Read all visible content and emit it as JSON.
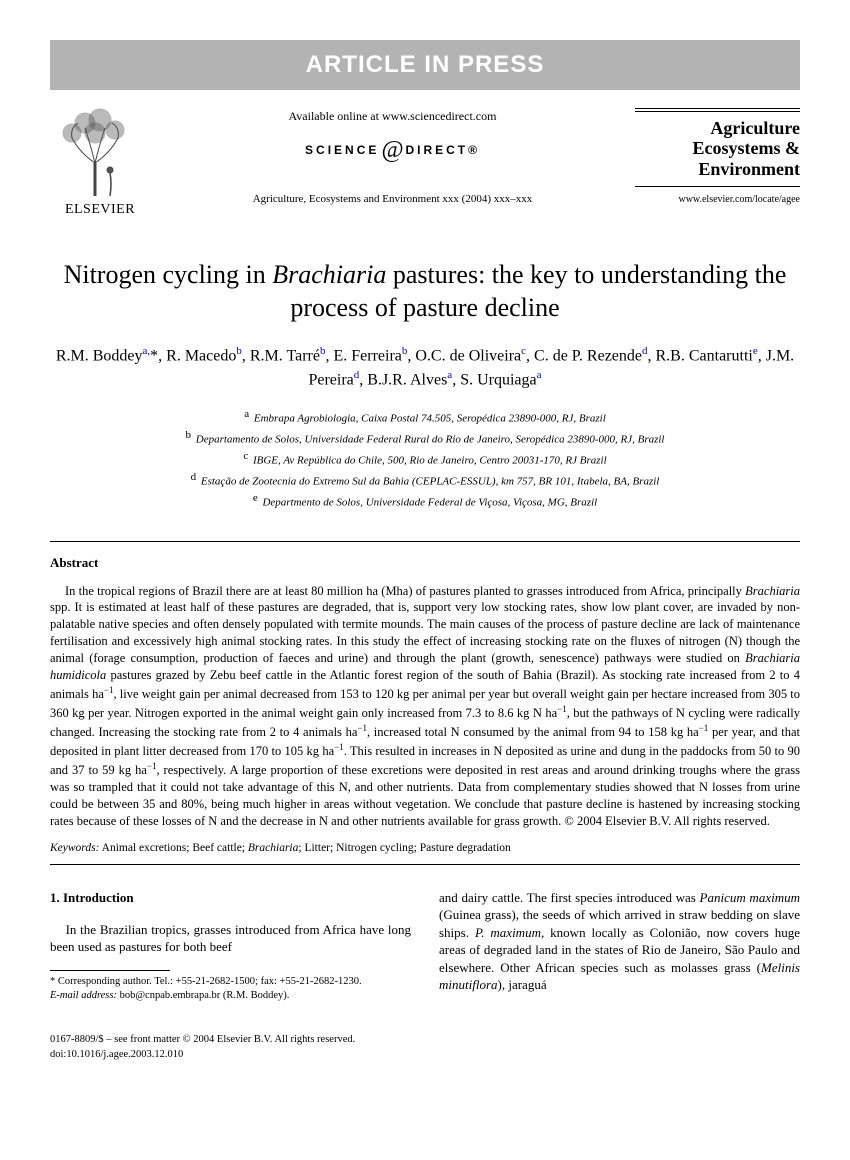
{
  "banner": "ARTICLE IN PRESS",
  "header": {
    "publisher_name": "ELSEVIER",
    "available_text": "Available online at www.sciencedirect.com",
    "sd_left": "SCIENCE",
    "sd_right": "DIRECT®",
    "citation": "Agriculture, Ecosystems and Environment xxx (2004) xxx–xxx",
    "journal_title_l1": "Agriculture",
    "journal_title_l2": "Ecosystems &",
    "journal_title_l3": "Environment",
    "journal_url": "www.elsevier.com/locate/agee"
  },
  "title_pre": "Nitrogen cycling in ",
  "title_ital": "Brachiaria",
  "title_post": " pastures: the key to understanding the process of pasture decline",
  "authors_html": "R.M. Boddey<sup><a href='#'>a</a>,</sup>*, R. Macedo<sup><a href='#'>b</a></sup>, R.M. Tarré<sup><a href='#'>b</a></sup>, E. Ferreira<sup><a href='#'>b</a></sup>, O.C. de Oliveira<sup><a href='#'>c</a></sup>, C. de P. Rezende<sup><a href='#'>d</a></sup>, R.B. Cantarutti<sup><a href='#'>e</a></sup>, J.M. Pereira<sup><a href='#'>d</a></sup>, B.J.R. Alves<sup><a href='#'>a</a></sup>, S. Urquiaga<sup><a href='#'>a</a></sup>",
  "affiliations": [
    {
      "sup": "a",
      "text": "Embrapa Agrobiologia, Caixa Postal 74.505, Seropédica 23890-000, RJ, Brazil"
    },
    {
      "sup": "b",
      "text": "Departamento de Solos, Universidade Federal Rural do Rio de Janeiro, Seropédica 23890-000, RJ, Brazil"
    },
    {
      "sup": "c",
      "text": "IBGE, Av República do Chile, 500, Rio de Janeiro, Centro 20031-170, RJ Brazil"
    },
    {
      "sup": "d",
      "text": "Estação de Zootecnia do Extremo Sul da Bahia (CEPLAC-ESSUL), km 757, BR 101, Itabela, BA, Brazil"
    },
    {
      "sup": "e",
      "text": "Departmento de Solos, Universidade Federal de Viçosa, Viçosa, MG, Brazil"
    }
  ],
  "abstract_heading": "Abstract",
  "abstract": "In the tropical regions of Brazil there are at least 80 million ha (Mha) of pastures planted to grasses introduced from Africa, principally <span class='ital'>Brachiaria</span> spp. It is estimated at least half of these pastures are degraded, that is, support very low stocking rates, show low plant cover, are invaded by non-palatable native species and often densely populated with termite mounds. The main causes of the process of pasture decline are lack of maintenance fertilisation and excessively high animal stocking rates. In this study the effect of increasing stocking rate on the fluxes of nitrogen (N) though the animal (forage consumption, production of faeces and urine) and through the plant (growth, senescence) pathways were studied on <span class='ital'>Brachiaria humidicola</span> pastures grazed by Zebu beef cattle in the Atlantic forest region of the south of Bahia (Brazil). As stocking rate increased from 2 to 4 animals ha<sup>−1</sup>, live weight gain per animal decreased from 153 to 120 kg per animal per year but overall weight gain per hectare increased from 305 to 360 kg per year. Nitrogen exported in the animal weight gain only increased from 7.3 to 8.6 kg N ha<sup>−1</sup>, but the pathways of N cycling were radically changed. Increasing the stocking rate from 2 to 4 animals ha<sup>−1</sup>, increased total N consumed by the animal from 94 to 158 kg ha<sup>−1</sup> per year, and that deposited in plant litter decreased from 170 to 105 kg ha<sup>−1</sup>. This resulted in increases in N deposited as urine and dung in the paddocks from 50 to 90 and 37 to 59 kg ha<sup>−1</sup>, respectively. A large proportion of these excretions were deposited in rest areas and around drinking troughs where the grass was so trampled that it could not take advantage of this N, and other nutrients. Data from complementary studies showed that N losses from urine could be between 35 and 80%, being much higher in areas without vegetation. We conclude that pasture decline is hastened by increasing stocking rates because of these losses of N and the decrease in N and other nutrients available for grass growth. © 2004 Elsevier B.V. All rights reserved.",
  "keywords_label": "Keywords:",
  "keywords_text": " Animal excretions; Beef cattle; <span class='ital'>Brachiaria</span>; Litter; Nitrogen cycling; Pasture degradation",
  "section1_heading": "1.  Introduction",
  "intro_p1": "In the Brazilian tropics, grasses introduced from Africa have long been used as pastures for both beef ",
  "intro_p1_cont": "and dairy cattle. The first species introduced was <span class='ital'>Panicum maximum</span> (Guinea grass), the seeds of which arrived in straw bedding on slave ships. <span class='ital'>P. maximum</span>, known locally as Colonião, now covers huge areas of degraded land in the states of Rio de Janeiro, São Paulo and elsewhere. Other African species such as molasses grass (<span class='ital'>Melinis minutiflora</span>), jaraguá",
  "footnote_corr": "* Corresponding author. Tel.: +55-21-2682-1500; fax: +55-21-2682-1230.",
  "footnote_email_label": "E-mail address:",
  "footnote_email": " bob@cnpab.embrapa.br (R.M. Boddey).",
  "footer_line1": "0167-8809/$ – see front matter © 2004 Elsevier B.V. All rights reserved.",
  "footer_line2": "doi:10.1016/j.agee.2003.12.010"
}
